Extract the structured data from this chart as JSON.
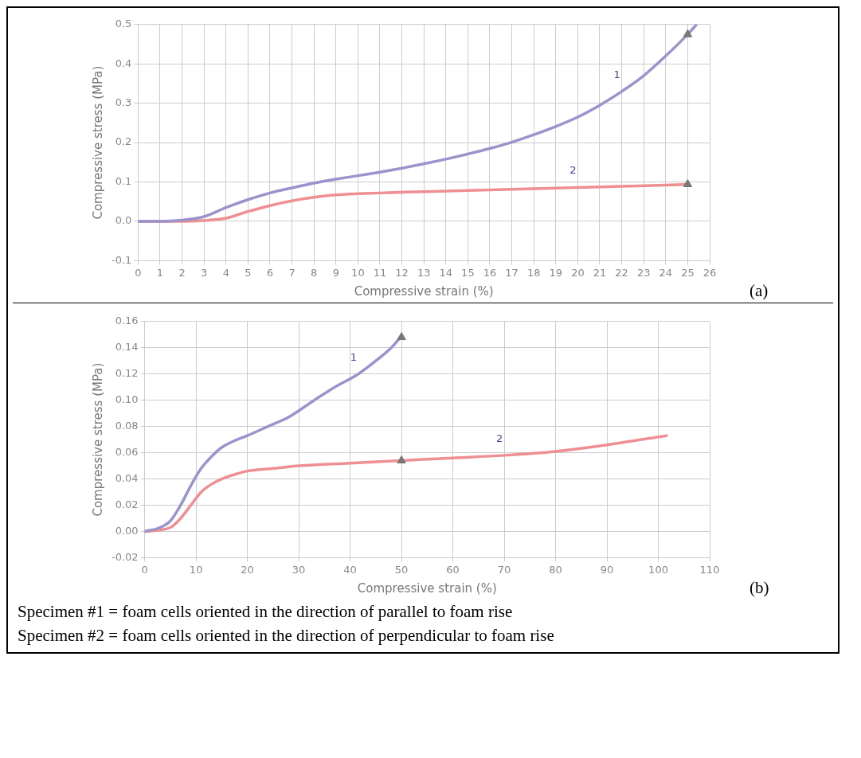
{
  "chart_data": [
    {
      "type": "line",
      "xlabel": "Compressive strain (%)",
      "ylabel": "Compressive stress (MPa)",
      "xlim": [
        0,
        26
      ],
      "xticks": [
        0,
        1,
        2,
        3,
        4,
        5,
        6,
        7,
        8,
        9,
        10,
        11,
        12,
        13,
        14,
        15,
        16,
        17,
        18,
        19,
        20,
        21,
        22,
        23,
        24,
        25,
        26
      ],
      "ylim": [
        -0.1,
        0.5
      ],
      "yticks": [
        -0.1,
        {
          "value": 0,
          "label": "0.0"
        },
        0.1,
        0.2,
        0.3,
        0.4,
        0.5
      ],
      "grid": true,
      "legend": false,
      "annotations": [
        "(a)"
      ],
      "series": [
        {
          "name": "1",
          "color": "#9b93cc",
          "x": [
            0,
            1,
            2,
            3,
            4,
            5,
            6,
            7,
            8,
            9,
            10,
            11,
            12,
            13,
            14,
            15,
            16,
            17,
            18,
            19,
            20,
            21,
            22,
            23,
            24,
            25,
            25.4
          ],
          "values": [
            0,
            0,
            0.003,
            0.012,
            0.035,
            0.055,
            0.072,
            0.085,
            0.097,
            0.107,
            0.116,
            0.125,
            0.135,
            0.146,
            0.158,
            0.171,
            0.185,
            0.201,
            0.22,
            0.241,
            0.265,
            0.295,
            0.33,
            0.37,
            0.42,
            0.475,
            0.5
          ]
        },
        {
          "name": "2",
          "color": "#ee8f93",
          "x": [
            0,
            1,
            2,
            3,
            4,
            5,
            6,
            7,
            8,
            9,
            10,
            11,
            12,
            14,
            16,
            18,
            20,
            22,
            24,
            25
          ],
          "values": [
            0,
            0,
            0,
            0.002,
            0.008,
            0.025,
            0.04,
            0.052,
            0.061,
            0.067,
            0.07,
            0.072,
            0.074,
            0.077,
            0.08,
            0.083,
            0.086,
            0.089,
            0.092,
            0.094
          ]
        },
        {
          "type": "scatter",
          "marker": "triangle",
          "color": "#777777",
          "x": [
            25,
            25
          ],
          "values": [
            0.475,
            0.094
          ]
        }
      ]
    },
    {
      "type": "line",
      "xlabel": "Compressive strain (%)",
      "ylabel": "Compressive stress (MPa)",
      "xlim": [
        0,
        110
      ],
      "xticks": [
        0,
        10,
        20,
        30,
        40,
        50,
        60,
        70,
        80,
        90,
        100,
        110
      ],
      "ylim": [
        -0.02,
        0.16
      ],
      "yticks": [
        {
          "value": -0.02,
          "label": "-0.02"
        },
        {
          "value": 0,
          "label": "0.00"
        },
        {
          "value": 0.02,
          "label": "0.02"
        },
        {
          "value": 0.04,
          "label": "0.04"
        },
        {
          "value": 0.06,
          "label": "0.06"
        },
        {
          "value": 0.08,
          "label": "0.08"
        },
        {
          "value": 0.1,
          "label": "0.10"
        },
        {
          "value": 0.12,
          "label": "0.12"
        },
        {
          "value": 0.14,
          "label": "0.14"
        },
        {
          "value": 0.16,
          "label": "0.16"
        }
      ],
      "grid": true,
      "legend": false,
      "annotations": [
        "(b)",
        "Specimen #1 = foam cells oriented in the direction of parallel to foam rise",
        "Specimen #2 = foam cells oriented in the direction of perpendicular to foam rise"
      ],
      "series": [
        {
          "name": "1",
          "color": "#9b93cc",
          "x": [
            0,
            3,
            5,
            7,
            9,
            11,
            13,
            15,
            18,
            20,
            24,
            28,
            33,
            37,
            41.6,
            45,
            48,
            50
          ],
          "values": [
            0,
            0.003,
            0.008,
            0.02,
            0.035,
            0.048,
            0.057,
            0.064,
            0.07,
            0.073,
            0.08,
            0.087,
            0.1,
            0.11,
            0.12,
            0.13,
            0.14,
            0.149
          ]
        },
        {
          "name": "2",
          "color": "#ee8f93",
          "x": [
            0,
            5,
            7,
            9,
            11,
            13,
            15,
            18,
            20,
            25,
            30,
            40,
            50,
            60,
            70,
            80,
            90,
            101.6
          ],
          "values": [
            0,
            0.003,
            0.01,
            0.02,
            0.03,
            0.036,
            0.04,
            0.044,
            0.046,
            0.048,
            0.05,
            0.052,
            0.054,
            0.056,
            0.058,
            0.061,
            0.066,
            0.073
          ]
        },
        {
          "type": "scatter",
          "marker": "triangle",
          "color": "#777777",
          "x": [
            50,
            50
          ],
          "values": [
            0.148,
            0.054
          ]
        }
      ]
    }
  ]
}
